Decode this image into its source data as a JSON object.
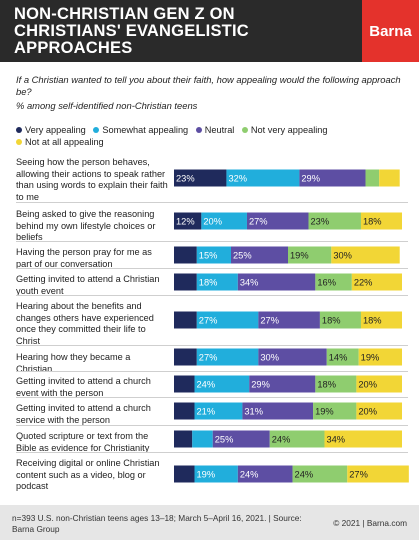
{
  "header": {
    "title": "NON-CHRISTIAN GEN Z ON CHRISTIANS' EVANGELISTIC APPROACHES",
    "logo": "Barna"
  },
  "question": "If a Christian wanted to tell you about their faith, how appealing would the following approach be?",
  "subquestion": "% among self-identified non-Christian teens",
  "footer": {
    "note": "n=393 U.S. non-Christian teens ages 13–18; March 5–April 16, 2021. | Source: Barna Group",
    "copyright": "© 2021 | Barna.com"
  },
  "chart_data": {
    "type": "bar",
    "orientation": "horizontal",
    "stacked": true,
    "legend_position": "top",
    "categories": [
      "Seeing how the person behaves, allowing their actions to speak rather than using words to explain their faith to me",
      "Being asked to give the reasoning behind my own lifestyle choices or beliefs",
      "Having the person pray for me as part of our conversation",
      "Getting invited to attend a Christian youth event",
      "Hearing about the benefits and changes others have experienced once they committed their life to Christ",
      "Hearing how they became a Christian",
      "Getting invited to attend a church event with the person",
      "Getting invited to attend a church service with the person",
      "Quoted scripture or text from the Bible as evidence for Christianity",
      "Receiving digital or online Christian content such as a video, blog or podcast"
    ],
    "series": [
      {
        "name": "Very appealing",
        "color": "#1f2a5c",
        "values": [
          23,
          12,
          10,
          10,
          10,
          10,
          9,
          9,
          8,
          9
        ]
      },
      {
        "name": "Somewhat appealing",
        "color": "#21aedc",
        "values": [
          32,
          20,
          15,
          18,
          27,
          27,
          24,
          21,
          9,
          19
        ]
      },
      {
        "name": "Neutral",
        "color": "#5d4ea3",
        "values": [
          29,
          27,
          25,
          34,
          27,
          30,
          29,
          31,
          25,
          24
        ]
      },
      {
        "name": "Not very appealing",
        "color": "#8fcd6f",
        "values": [
          6,
          23,
          19,
          16,
          18,
          14,
          18,
          19,
          24,
          24
        ]
      },
      {
        "name": "Not at all appealing",
        "color": "#f2d636",
        "values": [
          9,
          18,
          30,
          22,
          18,
          19,
          20,
          20,
          34,
          27
        ]
      }
    ],
    "labels": [
      [
        "23%",
        "32%",
        "29%",
        "",
        ""
      ],
      [
        "12%",
        "20%",
        "27%",
        "23%",
        "18%"
      ],
      [
        "",
        "15%",
        "25%",
        "19%",
        "30%"
      ],
      [
        "",
        "18%",
        "34%",
        "16%",
        "22%"
      ],
      [
        "",
        "27%",
        "27%",
        "18%",
        "18%"
      ],
      [
        "",
        "27%",
        "30%",
        "14%",
        "19%"
      ],
      [
        "",
        "24%",
        "29%",
        "18%",
        "20%"
      ],
      [
        "",
        "21%",
        "31%",
        "19%",
        "20%"
      ],
      [
        "",
        "",
        "25%",
        "24%",
        "34%"
      ],
      [
        "",
        "19%",
        "24%",
        "24%",
        "27%"
      ]
    ],
    "xlim": [
      0,
      100
    ]
  }
}
